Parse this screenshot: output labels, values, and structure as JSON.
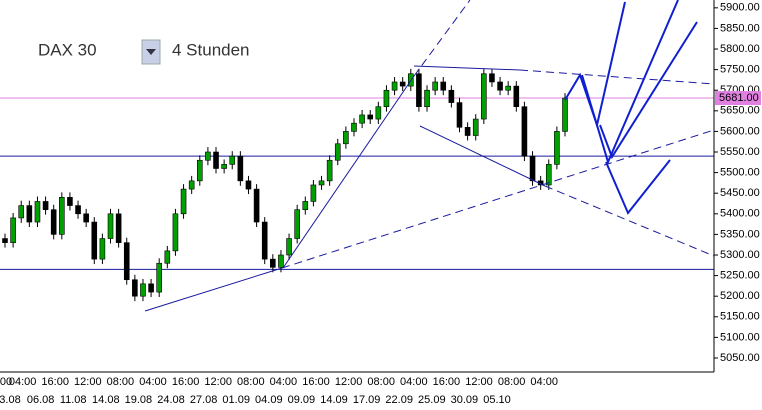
{
  "chart_data": {
    "type": "candlestick",
    "symbol": "DAX 30",
    "timeframe": "4 Stunden",
    "open": [
      5340,
      5330,
      5390,
      5420,
      5380,
      5430,
      5410,
      5350,
      5440,
      5420,
      5400,
      5380,
      5290,
      5340,
      5400,
      5330,
      5240,
      5200,
      5230,
      5210,
      5280,
      5310,
      5400,
      5460,
      5480,
      5530,
      5550,
      5510,
      5520,
      5540,
      5480,
      5460,
      5380,
      5290,
      5270,
      5300,
      5340,
      5410,
      5430,
      5470,
      5480,
      5530,
      5570,
      5600,
      5620,
      5640,
      5630,
      5660,
      5700,
      5720,
      5710,
      5740,
      5660,
      5700,
      5720,
      5700,
      5670,
      5610,
      5590,
      5630,
      5740,
      5720,
      5700,
      5710,
      5660,
      5540,
      5480,
      5470,
      5520,
      5600
    ],
    "high": [
      5352,
      5402,
      5432,
      5432,
      5442,
      5442,
      5422,
      5452,
      5452,
      5432,
      5412,
      5392,
      5352,
      5412,
      5412,
      5342,
      5252,
      5242,
      5242,
      5292,
      5322,
      5412,
      5472,
      5492,
      5542,
      5562,
      5562,
      5532,
      5552,
      5552,
      5492,
      5472,
      5392,
      5302,
      5312,
      5352,
      5422,
      5442,
      5482,
      5492,
      5542,
      5582,
      5612,
      5632,
      5652,
      5652,
      5672,
      5712,
      5732,
      5732,
      5752,
      5752,
      5712,
      5732,
      5732,
      5712,
      5682,
      5622,
      5642,
      5752,
      5752,
      5732,
      5722,
      5722,
      5672,
      5552,
      5492,
      5532,
      5612,
      5693
    ],
    "low": [
      5318,
      5318,
      5378,
      5368,
      5368,
      5398,
      5338,
      5338,
      5408,
      5388,
      5368,
      5278,
      5278,
      5328,
      5318,
      5228,
      5188,
      5188,
      5198,
      5198,
      5268,
      5298,
      5388,
      5448,
      5468,
      5518,
      5498,
      5498,
      5508,
      5468,
      5448,
      5368,
      5278,
      5258,
      5258,
      5288,
      5328,
      5398,
      5418,
      5458,
      5468,
      5518,
      5558,
      5588,
      5608,
      5618,
      5618,
      5648,
      5688,
      5698,
      5698,
      5648,
      5648,
      5688,
      5688,
      5658,
      5598,
      5578,
      5578,
      5618,
      5708,
      5688,
      5688,
      5648,
      5528,
      5468,
      5458,
      5458,
      5508,
      5588
    ],
    "close": [
      5330,
      5390,
      5420,
      5380,
      5430,
      5410,
      5350,
      5440,
      5420,
      5400,
      5380,
      5290,
      5340,
      5400,
      5330,
      5240,
      5200,
      5230,
      5210,
      5280,
      5310,
      5400,
      5460,
      5480,
      5530,
      5550,
      5510,
      5520,
      5540,
      5480,
      5460,
      5380,
      5290,
      5270,
      5300,
      5340,
      5410,
      5430,
      5470,
      5480,
      5530,
      5570,
      5600,
      5620,
      5640,
      5630,
      5660,
      5700,
      5720,
      5710,
      5740,
      5660,
      5700,
      5720,
      5700,
      5670,
      5610,
      5590,
      5630,
      5740,
      5720,
      5700,
      5710,
      5660,
      5540,
      5480,
      5470,
      5520,
      5600,
      5681
    ],
    "up_color": "#00a000",
    "down_color": "#000000",
    "hlines": [
      5540,
      5265
    ],
    "hline_color": "#1a1aa0",
    "price_marker": {
      "value": 5681,
      "label": "5681.00"
    },
    "price_color": "#e080e0",
    "ylim": [
      5016,
      5919
    ],
    "yticks": [
      {
        "value": 5050,
        "label": "5050.00"
      },
      {
        "value": 5100,
        "label": "5100.00"
      },
      {
        "value": 5150,
        "label": "5150.00"
      },
      {
        "value": 5200,
        "label": "5200.00"
      },
      {
        "value": 5250,
        "label": "5250.00"
      },
      {
        "value": 5300,
        "label": "5300.00"
      },
      {
        "value": 5350,
        "label": "5350.00"
      },
      {
        "value": 5400,
        "label": "5400.00"
      },
      {
        "value": 5450,
        "label": "5450.00"
      },
      {
        "value": 5500,
        "label": "5500.00"
      },
      {
        "value": 5550,
        "label": "5550.00"
      },
      {
        "value": 5600,
        "label": "5600.00"
      },
      {
        "value": 5650,
        "label": "5650.00"
      },
      {
        "value": 5700,
        "label": "5700.00"
      },
      {
        "value": 5750,
        "label": "5750.00"
      },
      {
        "value": 5800,
        "label": "5800.00"
      },
      {
        "value": 5850,
        "label": "5850.00"
      },
      {
        "value": 5900,
        "label": "5900.00"
      }
    ],
    "x_time_labels": [
      "00",
      "04:00",
      "16:00",
      "12:00",
      "08:00",
      "04:00",
      "16:00",
      "12:00",
      "08:00",
      "04:00",
      "16:00",
      "12:00",
      "08:00",
      "04:00",
      "16:00",
      "12:00",
      "08:00",
      "04:00"
    ],
    "x_date_labels": [
      "3.08",
      "06.08",
      "11.08",
      "14.08",
      "19.08",
      "24.08",
      "27.08",
      "01.09",
      "04.09",
      "09.09",
      "14.09",
      "17.09",
      "22.09",
      "25.09",
      "30.09",
      "05.10"
    ]
  }
}
